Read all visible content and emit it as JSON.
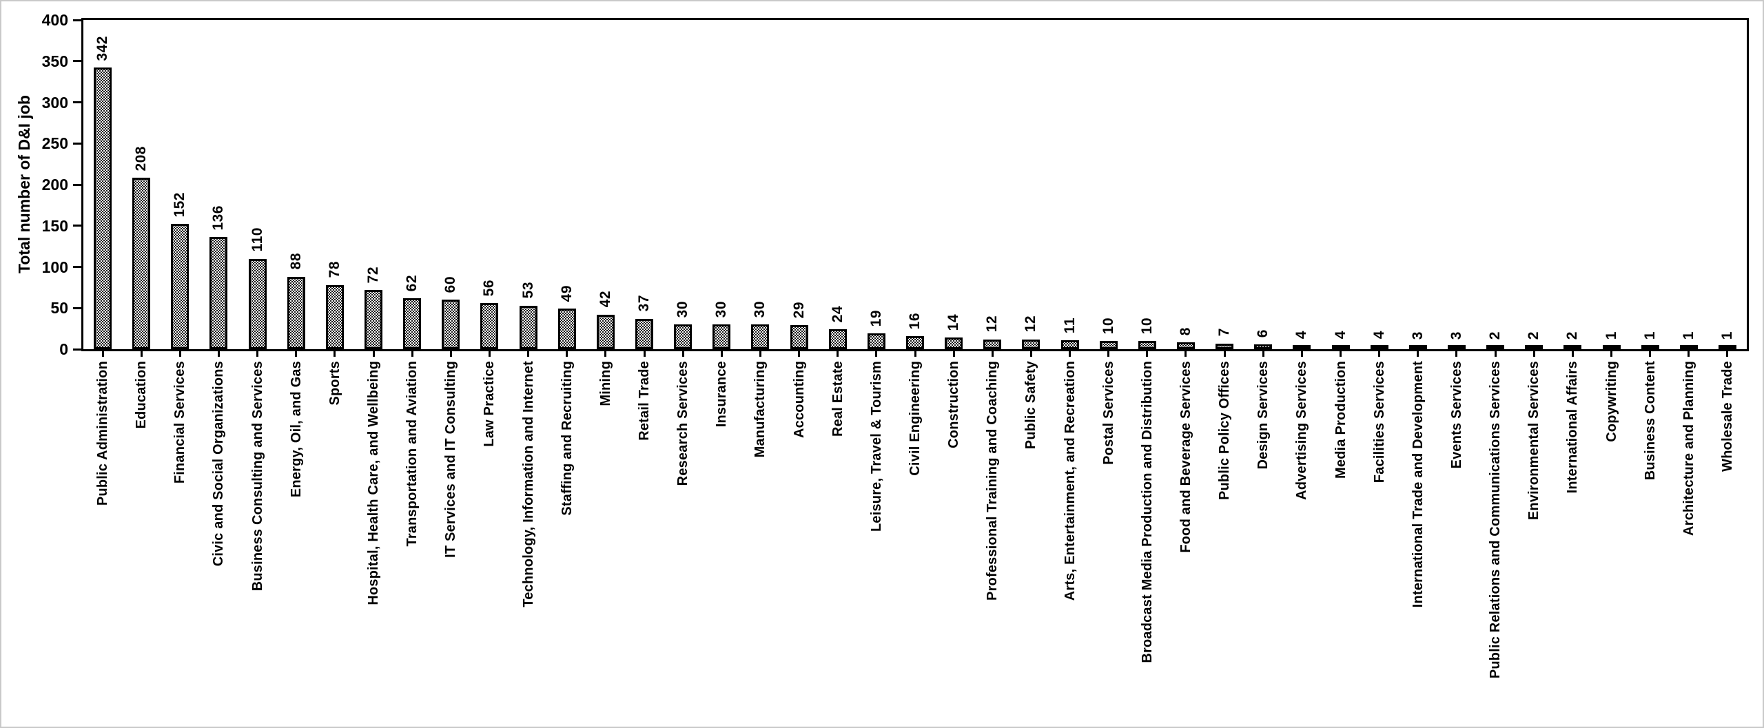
{
  "figure": {
    "background": "#ffffff",
    "frame_border_color": "#c9c9c9",
    "ink_color": "#000000"
  },
  "chart_data": {
    "type": "bar",
    "title": "",
    "xlabel": "",
    "ylabel": "Total number of D&I job",
    "ylim": [
      0,
      400
    ],
    "yticks": [
      0,
      50,
      100,
      150,
      200,
      250,
      300,
      350,
      400
    ],
    "grid": false,
    "legend": "none",
    "bar_fill": "black-dot-stipple-pattern-on-white",
    "bar_border_color": "#000000",
    "value_label_rotation": 90,
    "category_label_rotation": 90,
    "categories": [
      "Public Administration",
      "Education",
      "Financial Services",
      "Civic and Social Organizations",
      "Business Consulting and Services",
      "Energy, Oil, and Gas",
      "Sports",
      "Hospital, Health Care, and Wellbeing",
      "Transportation and Aviation",
      "IT Services and IT Consulting",
      "Law Practice",
      "Technology, Information and Internet",
      "Staffing and Recruiting",
      "Mining",
      "Retail Trade",
      "Research Services",
      "Insurance",
      "Manufacturing",
      "Accounting",
      "Real Estate",
      "Leisure, Travel & Tourism",
      "Civil Engineering",
      "Construction",
      "Professional Training and Coaching",
      "Public Safety",
      "Arts, Entertainment, and Recreation",
      "Postal Services",
      "Broadcast Media Production and Distribution",
      "Food and Beverage Services",
      "Public Policy Offices",
      "Design Services",
      "Advertising Services",
      "Media Production",
      "Facilities Services",
      "International Trade and Development",
      "Events Services",
      "Public Relations and Communications Services",
      "Environmental Services",
      "International Affairs",
      "Copywriting",
      "Business Content",
      "Architecture and Planning",
      "Wholesale Trade"
    ],
    "values": [
      342,
      208,
      152,
      136,
      110,
      88,
      78,
      72,
      62,
      60,
      56,
      53,
      49,
      42,
      37,
      30,
      30,
      30,
      29,
      24,
      19,
      16,
      14,
      12,
      12,
      11,
      10,
      10,
      8,
      7,
      6,
      4,
      4,
      4,
      3,
      3,
      2,
      2,
      2,
      1,
      1,
      1,
      1
    ]
  }
}
